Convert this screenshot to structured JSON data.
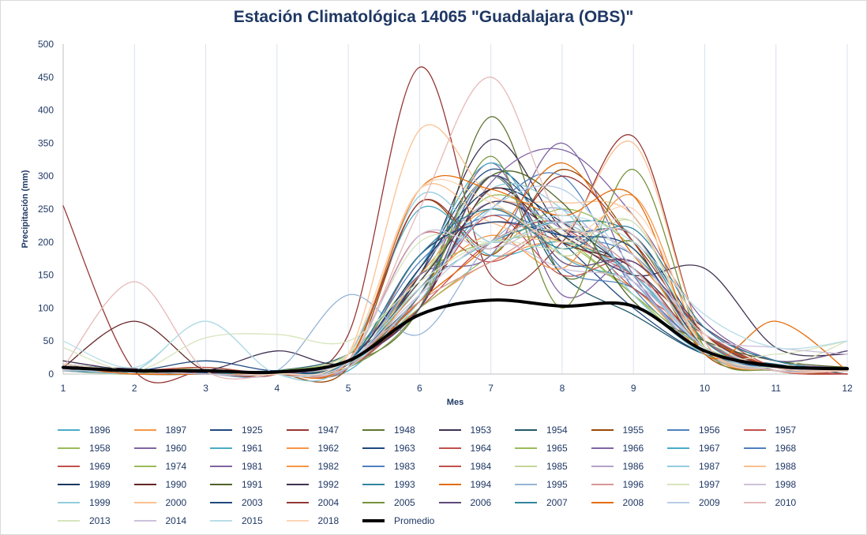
{
  "chart_data": {
    "type": "line",
    "title": "Estación Climatológica 14065 \"Guadalajara (OBS)\"",
    "xlabel": "Mes",
    "ylabel": "Precipitación (mm)",
    "x": [
      1,
      2,
      3,
      4,
      5,
      6,
      7,
      8,
      9,
      10,
      11,
      12
    ],
    "x_ticks": [
      "1",
      "2",
      "3",
      "4",
      "5",
      "6",
      "7",
      "8",
      "9",
      "10",
      "11",
      "12"
    ],
    "ylim": [
      0,
      500
    ],
    "y_ticks": [
      "0",
      "50",
      "100",
      "150",
      "200",
      "250",
      "300",
      "350",
      "400",
      "450",
      "500"
    ],
    "grid": "vertical",
    "legend_position": "bottom",
    "series": [
      {
        "name": "1896",
        "color": "#4bacc6",
        "values": [
          15,
          5,
          3,
          0,
          5,
          120,
          250,
          180,
          130,
          40,
          10,
          5
        ]
      },
      {
        "name": "1897",
        "color": "#f79646",
        "values": [
          5,
          0,
          0,
          0,
          10,
          100,
          170,
          200,
          150,
          30,
          5,
          0
        ]
      },
      {
        "name": "1925",
        "color": "#1f497d",
        "values": [
          8,
          3,
          2,
          0,
          10,
          150,
          300,
          200,
          100,
          30,
          10,
          5
        ]
      },
      {
        "name": "1947",
        "color": "#953735",
        "values": [
          5,
          0,
          0,
          0,
          60,
          465,
          150,
          200,
          360,
          50,
          5,
          0
        ]
      },
      {
        "name": "1948",
        "color": "#5f7530",
        "values": [
          10,
          5,
          0,
          0,
          15,
          100,
          390,
          150,
          200,
          40,
          5,
          10
        ]
      },
      {
        "name": "1953",
        "color": "#3f3151",
        "values": [
          12,
          8,
          3,
          0,
          15,
          150,
          355,
          220,
          160,
          60,
          10,
          5
        ]
      },
      {
        "name": "1954",
        "color": "#215968",
        "values": [
          10,
          3,
          0,
          5,
          30,
          120,
          300,
          150,
          90,
          30,
          15,
          0
        ]
      },
      {
        "name": "1955",
        "color": "#984807",
        "values": [
          8,
          5,
          10,
          0,
          10,
          260,
          180,
          310,
          200,
          30,
          5,
          0
        ]
      },
      {
        "name": "1956",
        "color": "#4f81bd",
        "values": [
          10,
          5,
          5,
          5,
          20,
          130,
          250,
          300,
          130,
          40,
          10,
          5
        ]
      },
      {
        "name": "1957",
        "color": "#c0504d",
        "values": [
          5,
          0,
          0,
          0,
          10,
          100,
          200,
          230,
          150,
          50,
          10,
          0
        ]
      },
      {
        "name": "1958",
        "color": "#9bbb59",
        "values": [
          5,
          0,
          10,
          0,
          20,
          100,
          180,
          250,
          190,
          40,
          5,
          10
        ]
      },
      {
        "name": "1960",
        "color": "#8064a2",
        "values": [
          8,
          0,
          5,
          0,
          10,
          120,
          320,
          120,
          170,
          40,
          5,
          10
        ]
      },
      {
        "name": "1961",
        "color": "#4bacc6",
        "values": [
          10,
          0,
          0,
          5,
          30,
          250,
          180,
          200,
          150,
          40,
          10,
          5
        ]
      },
      {
        "name": "1962",
        "color": "#f79646",
        "values": [
          5,
          5,
          0,
          0,
          10,
          150,
          250,
          180,
          130,
          30,
          5,
          5
        ]
      },
      {
        "name": "1963",
        "color": "#1f497d",
        "values": [
          10,
          5,
          0,
          0,
          20,
          160,
          310,
          220,
          210,
          60,
          10,
          5
        ]
      },
      {
        "name": "1964",
        "color": "#c0504d",
        "values": [
          5,
          5,
          10,
          0,
          10,
          180,
          230,
          200,
          150,
          70,
          10,
          5
        ]
      },
      {
        "name": "1965",
        "color": "#9bbb59",
        "values": [
          10,
          0,
          5,
          0,
          10,
          140,
          270,
          210,
          120,
          30,
          5,
          5
        ]
      },
      {
        "name": "1966",
        "color": "#8064a2",
        "values": [
          12,
          0,
          5,
          0,
          20,
          100,
          290,
          340,
          240,
          80,
          20,
          10
        ]
      },
      {
        "name": "1967",
        "color": "#4bacc6",
        "values": [
          10,
          5,
          5,
          0,
          10,
          160,
          320,
          180,
          140,
          50,
          5,
          10
        ]
      },
      {
        "name": "1968",
        "color": "#4f81bd",
        "values": [
          15,
          5,
          0,
          0,
          20,
          170,
          240,
          210,
          180,
          60,
          10,
          5
        ]
      },
      {
        "name": "1969",
        "color": "#c0504d",
        "values": [
          8,
          5,
          0,
          0,
          20,
          110,
          240,
          150,
          170,
          50,
          5,
          0
        ]
      },
      {
        "name": "1974",
        "color": "#9bbb59",
        "values": [
          5,
          5,
          5,
          5,
          30,
          150,
          200,
          200,
          120,
          40,
          10,
          5
        ]
      },
      {
        "name": "1981",
        "color": "#8064a2",
        "values": [
          12,
          5,
          0,
          0,
          10,
          150,
          180,
          350,
          150,
          40,
          10,
          5
        ]
      },
      {
        "name": "1982",
        "color": "#f79646",
        "values": [
          5,
          0,
          0,
          0,
          10,
          130,
          210,
          160,
          270,
          40,
          5,
          5
        ]
      },
      {
        "name": "1983",
        "color": "#4f81bd",
        "values": [
          8,
          5,
          0,
          5,
          10,
          120,
          300,
          160,
          130,
          40,
          5,
          5
        ]
      },
      {
        "name": "1984",
        "color": "#c0504d",
        "values": [
          10,
          0,
          5,
          0,
          20,
          210,
          170,
          220,
          130,
          60,
          10,
          10
        ]
      },
      {
        "name": "1985",
        "color": "#c3d69b",
        "values": [
          10,
          5,
          0,
          0,
          30,
          140,
          300,
          180,
          230,
          40,
          10,
          5
        ]
      },
      {
        "name": "1986",
        "color": "#b3a2c7",
        "values": [
          8,
          5,
          5,
          0,
          10,
          160,
          260,
          220,
          140,
          30,
          5,
          5
        ]
      },
      {
        "name": "1987",
        "color": "#92cddc",
        "values": [
          10,
          5,
          5,
          0,
          15,
          110,
          280,
          250,
          120,
          30,
          10,
          5
        ]
      },
      {
        "name": "1988",
        "color": "#fac090",
        "values": [
          5,
          0,
          0,
          0,
          30,
          370,
          270,
          260,
          240,
          40,
          5,
          10
        ]
      },
      {
        "name": "1989",
        "color": "#17375e",
        "values": [
          15,
          5,
          5,
          0,
          20,
          160,
          280,
          230,
          150,
          40,
          10,
          5
        ]
      },
      {
        "name": "1990",
        "color": "#632523",
        "values": [
          10,
          80,
          5,
          0,
          20,
          100,
          280,
          200,
          160,
          40,
          5,
          5
        ]
      },
      {
        "name": "1991",
        "color": "#4f6228",
        "values": [
          8,
          5,
          0,
          0,
          20,
          120,
          300,
          260,
          110,
          50,
          20,
          10
        ]
      },
      {
        "name": "1992",
        "color": "#403151",
        "values": [
          20,
          5,
          5,
          35,
          20,
          140,
          260,
          210,
          150,
          160,
          40,
          30
        ]
      },
      {
        "name": "1993",
        "color": "#31859c",
        "values": [
          5,
          0,
          0,
          5,
          20,
          130,
          200,
          230,
          210,
          50,
          10,
          10
        ]
      },
      {
        "name": "1994",
        "color": "#e46c0a",
        "values": [
          5,
          5,
          0,
          0,
          10,
          110,
          200,
          320,
          180,
          60,
          10,
          5
        ]
      },
      {
        "name": "1995",
        "color": "#95b3d7",
        "values": [
          8,
          5,
          0,
          5,
          120,
          60,
          200,
          250,
          140,
          30,
          5,
          10
        ]
      },
      {
        "name": "1996",
        "color": "#d99694",
        "values": [
          10,
          0,
          5,
          0,
          20,
          110,
          170,
          220,
          160,
          40,
          10,
          5
        ]
      },
      {
        "name": "1997",
        "color": "#d7e4bd",
        "values": [
          10,
          5,
          5,
          0,
          30,
          200,
          200,
          220,
          180,
          40,
          10,
          50
        ]
      },
      {
        "name": "1998",
        "color": "#ccc1da",
        "values": [
          12,
          5,
          0,
          0,
          20,
          120,
          200,
          160,
          140,
          40,
          10,
          5
        ]
      },
      {
        "name": "1999",
        "color": "#93cddd",
        "values": [
          10,
          5,
          80,
          0,
          20,
          270,
          200,
          230,
          150,
          40,
          5,
          5
        ]
      },
      {
        "name": "2000",
        "color": "#fac08f",
        "values": [
          5,
          5,
          0,
          0,
          30,
          280,
          230,
          210,
          350,
          50,
          5,
          5
        ]
      },
      {
        "name": "2003",
        "color": "#1f497d",
        "values": [
          10,
          5,
          20,
          5,
          20,
          180,
          230,
          210,
          190,
          40,
          10,
          10
        ]
      },
      {
        "name": "2004",
        "color": "#953735",
        "values": [
          255,
          5,
          5,
          0,
          20,
          260,
          190,
          300,
          200,
          60,
          10,
          5
        ]
      },
      {
        "name": "2005",
        "color": "#77933c",
        "values": [
          5,
          5,
          5,
          0,
          10,
          100,
          330,
          100,
          310,
          40,
          5,
          5
        ]
      },
      {
        "name": "2006",
        "color": "#5f497a",
        "values": [
          10,
          5,
          5,
          0,
          20,
          100,
          300,
          170,
          170,
          70,
          20,
          35
        ]
      },
      {
        "name": "2007",
        "color": "#31859c",
        "values": [
          15,
          5,
          0,
          0,
          20,
          180,
          250,
          190,
          220,
          70,
          20,
          5
        ]
      },
      {
        "name": "2008",
        "color": "#e46c0a",
        "values": [
          10,
          0,
          0,
          0,
          20,
          280,
          280,
          240,
          270,
          30,
          80,
          5
        ]
      },
      {
        "name": "2009",
        "color": "#b9cde5",
        "values": [
          5,
          5,
          5,
          0,
          10,
          120,
          250,
          280,
          160,
          40,
          5,
          5
        ]
      },
      {
        "name": "2010",
        "color": "#e6b9b8",
        "values": [
          10,
          140,
          5,
          0,
          20,
          250,
          450,
          230,
          210,
          40,
          5,
          5
        ]
      },
      {
        "name": "2013",
        "color": "#d7e4bd",
        "values": [
          40,
          5,
          55,
          60,
          50,
          140,
          200,
          190,
          230,
          40,
          30,
          50
        ]
      },
      {
        "name": "2014",
        "color": "#ccc1da",
        "values": [
          10,
          5,
          0,
          0,
          20,
          210,
          190,
          230,
          180,
          60,
          40,
          30
        ]
      },
      {
        "name": "2015",
        "color": "#b7dee8",
        "values": [
          50,
          10,
          80,
          0,
          20,
          130,
          200,
          240,
          200,
          90,
          40,
          50
        ]
      },
      {
        "name": "2018",
        "color": "#fcd5b5",
        "values": [
          15,
          5,
          5,
          0,
          30,
          280,
          260,
          200,
          250,
          60,
          10,
          5
        ]
      },
      {
        "name": "Promedio",
        "color": "#000000",
        "bold": true,
        "values": [
          10,
          5,
          5,
          3,
          20,
          90,
          112,
          103,
          103,
          35,
          12,
          8
        ]
      }
    ]
  }
}
